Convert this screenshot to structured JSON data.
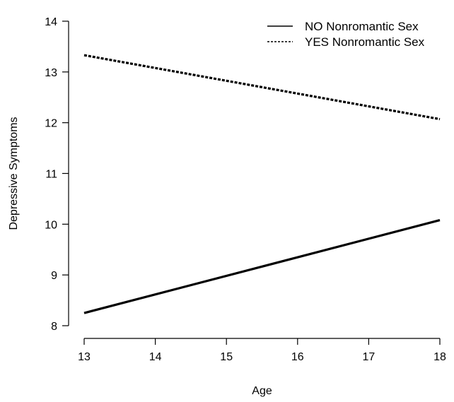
{
  "chart_data": {
    "type": "line",
    "title": "",
    "xlabel": "Age",
    "ylabel": "Depressive Symptoms",
    "x": [
      13,
      18
    ],
    "xticks": [
      13,
      14,
      15,
      16,
      17,
      18
    ],
    "yticks": [
      8,
      9,
      10,
      11,
      12,
      13,
      14
    ],
    "xlim": [
      12.8,
      18.2
    ],
    "ylim": [
      7.85,
      14.2
    ],
    "grid": false,
    "legend_position": "top-right",
    "series": [
      {
        "name": "NO Nonromantic Sex",
        "linestyle": "solid",
        "color": "#000000",
        "values": [
          8.25,
          10.08
        ]
      },
      {
        "name": "YES Nonromantic Sex",
        "linestyle": "dashed",
        "color": "#000000",
        "values": [
          13.33,
          12.07
        ]
      }
    ]
  }
}
